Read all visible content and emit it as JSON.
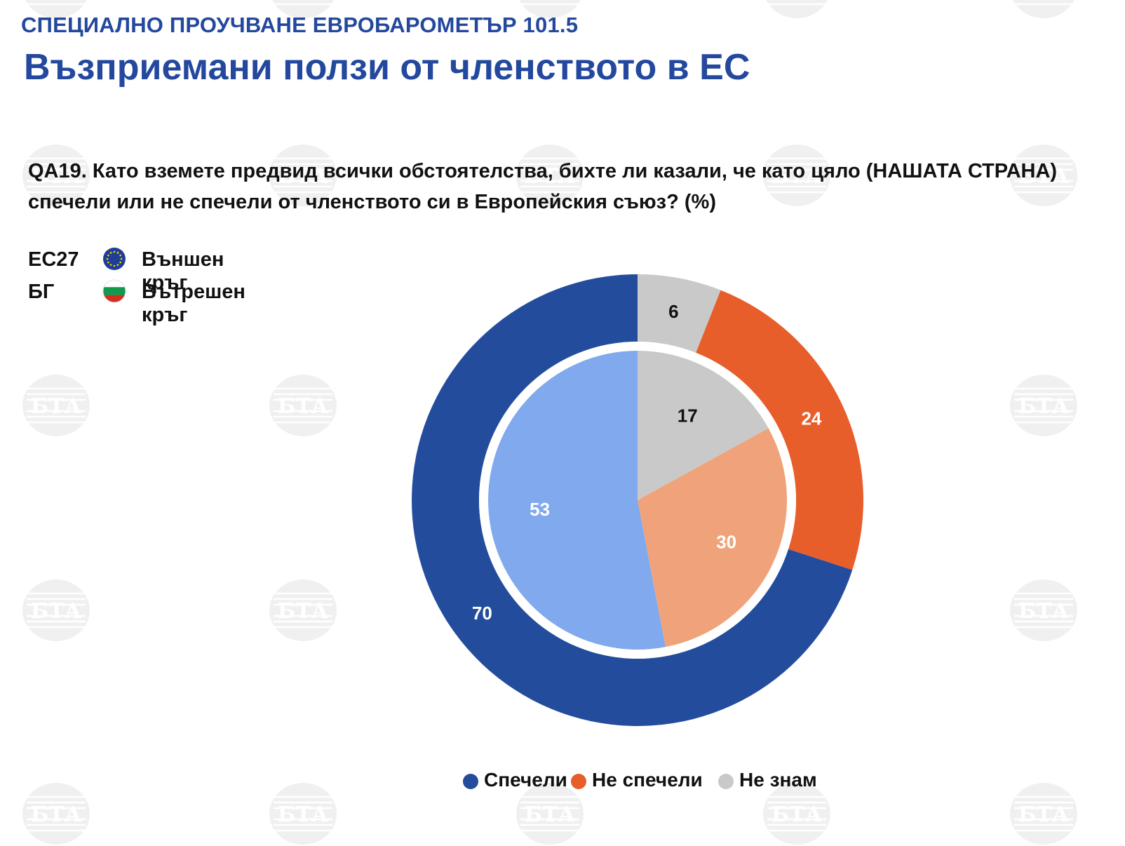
{
  "header": {
    "supertitle": "СПЕЦИАЛНО ПРОУЧВАНЕ ЕВРОБАРОМЕТЪР 101.5",
    "title": "Възприемани ползи от членството в ЕС"
  },
  "question": "QA19. Като вземете предвид всички обстоятелства, бихте ли казали, че като цяло (НАШАТА СТРАНА) спечели или не спечели от членството си в Европейския съюз? (%)",
  "ring_legend": [
    {
      "code": "ЕС27",
      "icon": "eu-flag-icon",
      "label": "Външен кръг"
    },
    {
      "code": "БГ",
      "icon": "bulgaria-flag-icon",
      "label": "Вътрешен кръг"
    }
  ],
  "watermark_text": "БТА",
  "colors": {
    "title": "#23489e",
    "outer": [
      "#234d9c",
      "#e85e2b",
      "#c9c9c9"
    ],
    "inner": [
      "#80a9ee",
      "#f0a37a",
      "#c9c9c9"
    ]
  },
  "chart_data": {
    "type": "pie",
    "categories": [
      "Спечели",
      "Не спечели",
      "Не знам"
    ],
    "series": [
      {
        "name": "ЕС27",
        "ring": "outer",
        "values": [
          70,
          24,
          6
        ]
      },
      {
        "name": "БГ",
        "ring": "inner",
        "values": [
          53,
          30,
          17
        ]
      }
    ],
    "legend_position": "bottom"
  }
}
